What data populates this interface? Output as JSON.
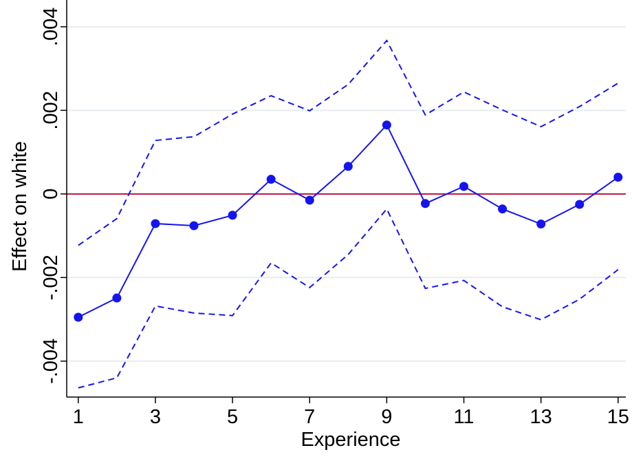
{
  "chart_data": {
    "type": "line",
    "x_label": "Experience",
    "y_label": "Effect on white",
    "x": [
      1,
      2,
      3,
      4,
      5,
      6,
      7,
      8,
      9,
      10,
      11,
      12,
      13,
      14,
      15
    ],
    "series": [
      {
        "color": "#1414f0",
        "style": "solid",
        "markers": true,
        "values": [
          -0.00295,
          -0.00249,
          -0.00071,
          -0.00076,
          -0.00051,
          0.00035,
          -0.00015,
          0.00066,
          0.00165,
          -0.00023,
          0.00018,
          -0.00036,
          -0.00072,
          -0.00025,
          0.0004
        ]
      },
      {
        "color": "#1414f0",
        "style": "dashed",
        "markers": false,
        "values": [
          -0.00123,
          -0.00059,
          0.00128,
          0.00137,
          0.00191,
          0.00235,
          0.00199,
          0.00262,
          0.00367,
          0.00189,
          0.00244,
          0.00201,
          0.00161,
          0.00209,
          0.00265
        ]
      },
      {
        "color": "#1414f0",
        "style": "dashed",
        "markers": false,
        "values": [
          -0.00464,
          -0.0044,
          -0.00268,
          -0.00285,
          -0.00291,
          -0.00165,
          -0.00224,
          -0.00145,
          -0.00036,
          -0.00226,
          -0.00207,
          -0.0027,
          -0.00301,
          -0.00252,
          -0.00181
        ]
      }
    ],
    "xlim": [
      0.7,
      15.2
    ],
    "xticks": [
      1,
      3,
      5,
      7,
      9,
      11,
      13,
      15
    ],
    "ylim": [
      -0.00486,
      0.00464
    ],
    "yticks": [
      {
        "value": -0.004,
        "label": "-.004"
      },
      {
        "value": -0.002,
        "label": "-.002"
      },
      0,
      {
        "value": 0.002,
        "label": ".002"
      },
      {
        "value": 0.004,
        "label": ".004"
      }
    ],
    "grid": true,
    "grid_color": "#e6edf1",
    "reference_line": {
      "value": 0,
      "color": "#c4123e"
    }
  }
}
